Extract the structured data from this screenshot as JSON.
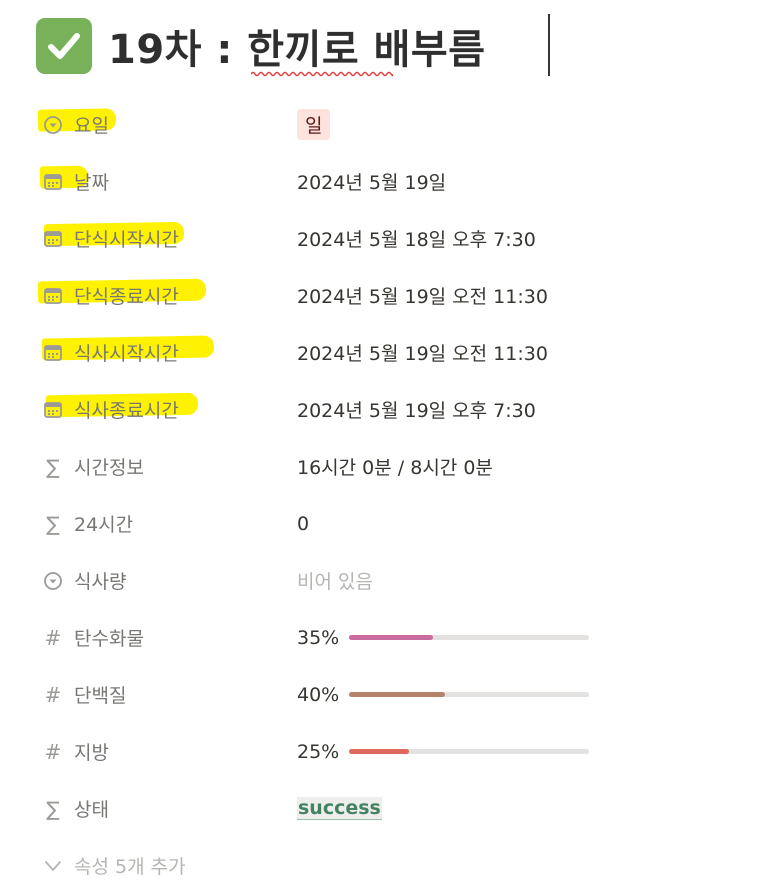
{
  "page": {
    "title": "19차 : 한끼로 배부름",
    "title_emoji": "check-mark-button-icon"
  },
  "highlight_color": "#fff200",
  "properties": [
    {
      "icon": "select-icon",
      "label": "요일",
      "value": "일",
      "type": "select",
      "tag_color": "#fde2dd"
    },
    {
      "icon": "calendar-icon",
      "label": "날짜",
      "value": "2024년 5월 19일",
      "type": "date"
    },
    {
      "icon": "calendar-icon",
      "label": "단식시작시간",
      "value": "2024년 5월 18일 오후 7:30",
      "type": "date"
    },
    {
      "icon": "calendar-icon",
      "label": "단식종료시간",
      "value": "2024년 5월 19일 오전 11:30",
      "type": "date"
    },
    {
      "icon": "calendar-icon",
      "label": "식사시작시간",
      "value": "2024년 5월 19일 오전 11:30",
      "type": "date"
    },
    {
      "icon": "calendar-icon",
      "label": "식사종료시간",
      "value": "2024년 5월 19일 오후 7:30",
      "type": "date"
    },
    {
      "icon": "sigma-icon",
      "label": "시간정보",
      "value": "16시간 0분 / 8시간 0분",
      "type": "formula"
    },
    {
      "icon": "sigma-icon",
      "label": "24시간",
      "value": "0",
      "type": "formula"
    },
    {
      "icon": "select-icon",
      "label": "식사량",
      "value": "비어 있음",
      "type": "empty"
    },
    {
      "icon": "hash-icon",
      "label": "탄수화물",
      "value": "35%",
      "type": "progress",
      "percent": 35,
      "color": "#cb6ca0"
    },
    {
      "icon": "hash-icon",
      "label": "단백질",
      "value": "40%",
      "type": "progress",
      "percent": 40,
      "color": "#b5836a"
    },
    {
      "icon": "hash-icon",
      "label": "지방",
      "value": "25%",
      "type": "progress",
      "percent": 25,
      "color": "#e0695e"
    },
    {
      "icon": "sigma-icon",
      "label": "상태",
      "value": "success",
      "type": "status",
      "color": "#448361"
    }
  ],
  "add_more": {
    "icon": "chevron-down-icon",
    "label": "속성 5개 추가"
  }
}
